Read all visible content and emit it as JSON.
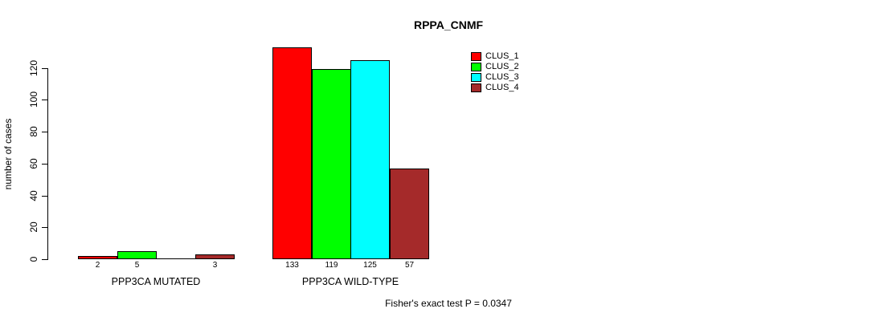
{
  "chart_data": {
    "type": "bar",
    "title": "RPPA_CNMF",
    "ylabel": "number of cases",
    "xlabel": "",
    "ylim": [
      0,
      120
    ],
    "yticks": [
      0,
      20,
      40,
      60,
      80,
      100,
      120
    ],
    "grid": false,
    "legend_position": "top-right",
    "categories": [
      "PPP3CA MUTATED",
      "PPP3CA WILD-TYPE"
    ],
    "series": [
      {
        "name": "CLUS_1",
        "color": "#ff0000",
        "values": [
          2,
          133
        ]
      },
      {
        "name": "CLUS_2",
        "color": "#00ff00",
        "values": [
          5,
          119
        ]
      },
      {
        "name": "CLUS_3",
        "color": "#00ffff",
        "values": [
          0,
          125
        ]
      },
      {
        "name": "CLUS_4",
        "color": "#a52a2a",
        "values": [
          3,
          57
        ]
      }
    ],
    "bar_labels": [
      [
        "2",
        "5",
        "",
        "3"
      ],
      [
        "133",
        "119",
        "125",
        "57"
      ]
    ],
    "footnote": "Fisher's exact test P = 0.0347",
    "colors": {
      "axis": "#000000",
      "text": "#000000",
      "background": "#ffffff"
    }
  }
}
